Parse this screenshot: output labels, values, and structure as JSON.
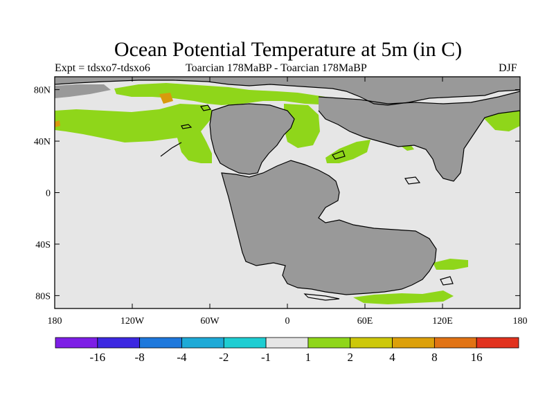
{
  "title": "Ocean Potential Temperature at 5m (in C)",
  "subtitle_left": "Expt = tdsxo7-tdsxo6",
  "subtitle_center": "Toarcian 178MaBP - Toarcian 178MaBP",
  "subtitle_right": "DJF",
  "colors": {
    "land": "#999999",
    "no_change": "#e6e6e6",
    "positive_1_2": "#8fd61a",
    "positive_4_8": "#d89a0c",
    "coast": "#000000"
  },
  "map": {
    "x_ticks": [
      {
        "value": -180,
        "label": "180"
      },
      {
        "value": -120,
        "label": "120W"
      },
      {
        "value": -60,
        "label": "60W"
      },
      {
        "value": 0,
        "label": "0"
      },
      {
        "value": 60,
        "label": "60E"
      },
      {
        "value": 120,
        "label": "120E"
      },
      {
        "value": 180,
        "label": "180"
      }
    ],
    "y_ticks": [
      {
        "value": 80,
        "label": "80N"
      },
      {
        "value": 40,
        "label": "40N"
      },
      {
        "value": 0,
        "label": "0"
      },
      {
        "value": -40,
        "label": "40S"
      },
      {
        "value": -80,
        "label": "80S"
      }
    ],
    "lon_range": [
      -180,
      180
    ],
    "lat_range": [
      -90,
      90
    ]
  },
  "colorbar": {
    "colors": [
      "#7d1ee6",
      "#3c28e1",
      "#1e78dc",
      "#1eaad7",
      "#1ecdd2",
      "#e6e6e6",
      "#8fd61a",
      "#cdc80a",
      "#dca00a",
      "#e17314",
      "#e1321e"
    ],
    "labels": [
      "-16",
      "-8",
      "-4",
      "-2",
      "-1",
      "1",
      "2",
      "4",
      "8",
      "16"
    ]
  }
}
